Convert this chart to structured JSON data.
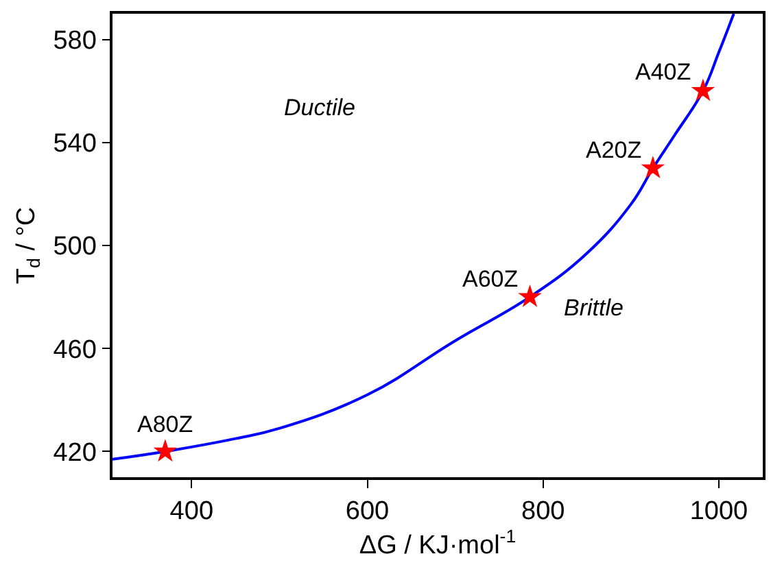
{
  "chart_data": {
    "type": "line",
    "xlabel": "ΔG / KJ·mol$^{-1}$",
    "ylabel": "T$_{d}$ / °C",
    "xlim": [
      310,
      1050
    ],
    "xticks": [
      400,
      600,
      800,
      1000
    ],
    "ylim": [
      410,
      590
    ],
    "yticks": [
      420,
      460,
      500,
      540,
      580
    ],
    "grid": false,
    "legend": false,
    "series": [
      {
        "marker": "none",
        "color": "#0000ff",
        "x": [
          310,
          370,
          450,
          500,
          600,
          700,
          785,
          850,
          900,
          925,
          950,
          982,
          1000,
          1017
        ],
        "values": [
          417,
          420,
          425,
          429,
          442,
          463,
          480,
          497,
          516,
          530,
          543,
          560,
          575,
          590
        ]
      },
      {
        "type": "scatter",
        "marker": "star",
        "color": "#ff0000",
        "x": [
          370,
          785,
          925,
          982
        ],
        "values": [
          420,
          480,
          530,
          560
        ]
      }
    ],
    "annotations": [
      {
        "text": "A80Z",
        "x": 370,
        "y": 420
      },
      {
        "text": "A60Z",
        "x": 785,
        "y": 480
      },
      {
        "text": "A20Z",
        "x": 925,
        "y": 530
      },
      {
        "text": "A40Z",
        "x": 982,
        "y": 560
      },
      "Ductile",
      "Brittle"
    ]
  }
}
